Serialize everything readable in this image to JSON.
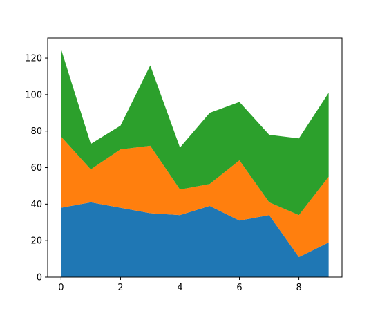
{
  "chart_data": {
    "type": "area",
    "stacked": true,
    "x": [
      0,
      1,
      2,
      3,
      4,
      5,
      6,
      7,
      8,
      9
    ],
    "series": [
      {
        "values": [
          38,
          41,
          38,
          35,
          34,
          39,
          31,
          34,
          11,
          19
        ],
        "color": "#1f77b4"
      },
      {
        "values": [
          39,
          18,
          32,
          37,
          14,
          12,
          33,
          7,
          23,
          36
        ],
        "color": "#ff7f0e"
      },
      {
        "values": [
          48,
          14,
          13,
          44,
          23,
          39,
          32,
          37,
          42,
          46
        ],
        "color": "#2ca02c"
      }
    ],
    "title": "",
    "xlabel": "",
    "ylabel": "",
    "xlim": [
      -0.45,
      9.45
    ],
    "ylim": [
      0,
      131
    ],
    "xticks": [
      0,
      2,
      4,
      6,
      8
    ],
    "yticks": [
      0,
      20,
      40,
      60,
      80,
      100,
      120
    ],
    "grid": false,
    "legend": "none"
  }
}
